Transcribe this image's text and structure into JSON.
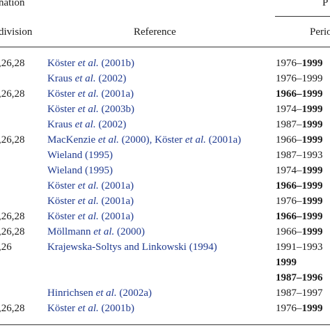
{
  "header": {
    "group_left": "nation",
    "group_right": "P",
    "col_division": "division",
    "col_reference": "Reference",
    "col_period": "Perio"
  },
  "rows": [
    {
      "division": ",26,28",
      "ref_parts": [
        {
          "t": "Köster "
        },
        {
          "t": "et al.",
          "i": true
        },
        {
          "t": " (2001b)"
        }
      ],
      "period": [
        {
          "t": "1976–"
        },
        {
          "t": "1999",
          "b": true
        }
      ]
    },
    {
      "division": "",
      "ref_parts": [
        {
          "t": "Kraus "
        },
        {
          "t": "et al.",
          "i": true
        },
        {
          "t": " (2002)"
        }
      ],
      "period": [
        {
          "t": "1976–1999"
        }
      ]
    },
    {
      "division": ",26,28",
      "ref_parts": [
        {
          "t": "Köster "
        },
        {
          "t": "et al.",
          "i": true
        },
        {
          "t": " (2001a)"
        }
      ],
      "period": [
        {
          "t": "1966–1999",
          "b": true
        }
      ]
    },
    {
      "division": "",
      "ref_parts": [
        {
          "t": "Köster "
        },
        {
          "t": "et al.",
          "i": true
        },
        {
          "t": " (2003b)"
        }
      ],
      "period": [
        {
          "t": "1974–"
        },
        {
          "t": "1999",
          "b": true
        }
      ]
    },
    {
      "division": "",
      "ref_parts": [
        {
          "t": "Kraus "
        },
        {
          "t": "et al.",
          "i": true
        },
        {
          "t": " (2002)"
        }
      ],
      "period": [
        {
          "t": "1987–"
        },
        {
          "t": "1999",
          "b": true
        }
      ]
    },
    {
      "division": ",26,28",
      "ref_parts": [
        {
          "t": "MacKenzie "
        },
        {
          "t": "et al.",
          "i": true
        },
        {
          "t": " (2000), Köster "
        },
        {
          "t": "et al.",
          "i": true
        },
        {
          "t": " (2001a)"
        }
      ],
      "period": [
        {
          "t": "1966–"
        },
        {
          "t": "1999",
          "b": true
        }
      ]
    },
    {
      "division": "",
      "ref_parts": [
        {
          "t": "Wieland (1995)"
        }
      ],
      "period": [
        {
          "t": "1987–1993"
        }
      ]
    },
    {
      "division": "",
      "ref_parts": [
        {
          "t": "Wieland (1995)"
        }
      ],
      "period": [
        {
          "t": "1974–"
        },
        {
          "t": "1999",
          "b": true
        }
      ]
    },
    {
      "division": "",
      "ref_parts": [
        {
          "t": "Köster "
        },
        {
          "t": "et al.",
          "i": true
        },
        {
          "t": " (2001a)"
        }
      ],
      "period": [
        {
          "t": "1966–1999",
          "b": true
        }
      ]
    },
    {
      "division": "",
      "ref_parts": [
        {
          "t": "Köster "
        },
        {
          "t": "et al.",
          "i": true
        },
        {
          "t": " (2001a)"
        }
      ],
      "period": [
        {
          "t": "1976–"
        },
        {
          "t": "1999",
          "b": true
        }
      ]
    },
    {
      "division": ",26,28",
      "ref_parts": [
        {
          "t": "Köster "
        },
        {
          "t": "et al.",
          "i": true
        },
        {
          "t": " (2001a)"
        }
      ],
      "period": [
        {
          "t": "1966–1999",
          "b": true
        }
      ]
    },
    {
      "division": ",26,28",
      "ref_parts": [
        {
          "t": "Möllmann "
        },
        {
          "t": "et al.",
          "i": true
        },
        {
          "t": " (2000)"
        }
      ],
      "period": [
        {
          "t": "1966–"
        },
        {
          "t": "1999",
          "b": true
        }
      ]
    },
    {
      "division": ",26",
      "ref_parts": [
        {
          "t": "Krajewska-Soltys and Linkowski (1994)"
        }
      ],
      "period": [
        {
          "t": "1991–1993"
        }
      ]
    },
    {
      "division": "",
      "ref_parts": [],
      "period": [
        {
          "t": "1999",
          "b": true
        }
      ]
    },
    {
      "division": "",
      "ref_parts": [],
      "period": [
        {
          "t": "1987–1996",
          "b": true
        }
      ]
    },
    {
      "division": "",
      "ref_parts": [
        {
          "t": "Hinrichsen "
        },
        {
          "t": "et al.",
          "i": true
        },
        {
          "t": " (2002a)"
        }
      ],
      "period": [
        {
          "t": "1987–1997"
        }
      ]
    },
    {
      "division": ",26,28",
      "ref_parts": [
        {
          "t": "Köster "
        },
        {
          "t": "et al.",
          "i": true
        },
        {
          "t": " (2001b)"
        }
      ],
      "period": [
        {
          "t": "1976–"
        },
        {
          "t": "1999",
          "b": true
        }
      ]
    }
  ]
}
